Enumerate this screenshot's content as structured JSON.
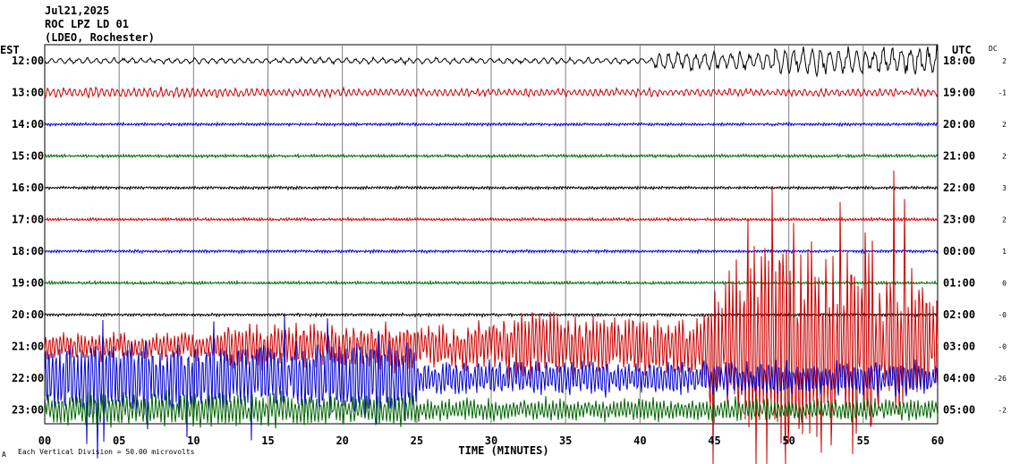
{
  "header": {
    "date": "Jul21,2025",
    "station": "ROC LPZ LD 01",
    "network": "(LDEO, Rochester)"
  },
  "labels": {
    "left_zone": "EST",
    "right_zone": "UTC",
    "dc_header": "DC",
    "xlabel": "TIME (MINUTES)",
    "footer": "Each Vertical Division = 50.00 microvolts",
    "footer_mark": "A"
  },
  "colors": {
    "cycle": [
      "#000000",
      "#cc0000",
      "#0000cc",
      "#006600"
    ],
    "grid": "#808080"
  },
  "chart_data": {
    "type": "line",
    "description_kind": "helicorder",
    "xlim": [
      0,
      60
    ],
    "x_ticks": [
      "00",
      "05",
      "10",
      "15",
      "20",
      "25",
      "30",
      "35",
      "40",
      "45",
      "50",
      "55",
      "60"
    ],
    "rows": [
      {
        "est": "12:00",
        "utc": "18:00",
        "dc": "2",
        "color": "#000000",
        "activity": "long-period swell, large waves 41-60 min"
      },
      {
        "est": "13:00",
        "utc": "19:00",
        "dc": "-1",
        "color": "#cc0000",
        "activity": "moderate oscillation"
      },
      {
        "est": "14:00",
        "utc": "20:00",
        "dc": "2",
        "color": "#0000cc",
        "activity": "quiet"
      },
      {
        "est": "15:00",
        "utc": "21:00",
        "dc": "2",
        "color": "#006600",
        "activity": "quiet"
      },
      {
        "est": "16:00",
        "utc": "22:00",
        "dc": "3",
        "color": "#000000",
        "activity": "quiet"
      },
      {
        "est": "17:00",
        "utc": "23:00",
        "dc": "2",
        "color": "#cc0000",
        "activity": "quiet"
      },
      {
        "est": "18:00",
        "utc": "00:00",
        "dc": "1",
        "color": "#0000cc",
        "activity": "quiet"
      },
      {
        "est": "19:00",
        "utc": "01:00",
        "dc": "0",
        "color": "#006600",
        "activity": "quiet"
      },
      {
        "est": "20:00",
        "utc": "02:00",
        "dc": "-0",
        "color": "#000000",
        "activity": "quiet"
      },
      {
        "est": "21:00",
        "utc": "03:00",
        "dc": "-0",
        "color": "#cc0000",
        "activity": "strong, very large spikes 44-58 min"
      },
      {
        "est": "22:00",
        "utc": "04:00",
        "dc": "-26",
        "color": "#0000cc",
        "activity": "strong, large spikes 0-25 min"
      },
      {
        "est": "23:00",
        "utc": "05:00",
        "dc": "-2",
        "color": "#006600",
        "activity": "moderate-strong noise"
      }
    ]
  }
}
